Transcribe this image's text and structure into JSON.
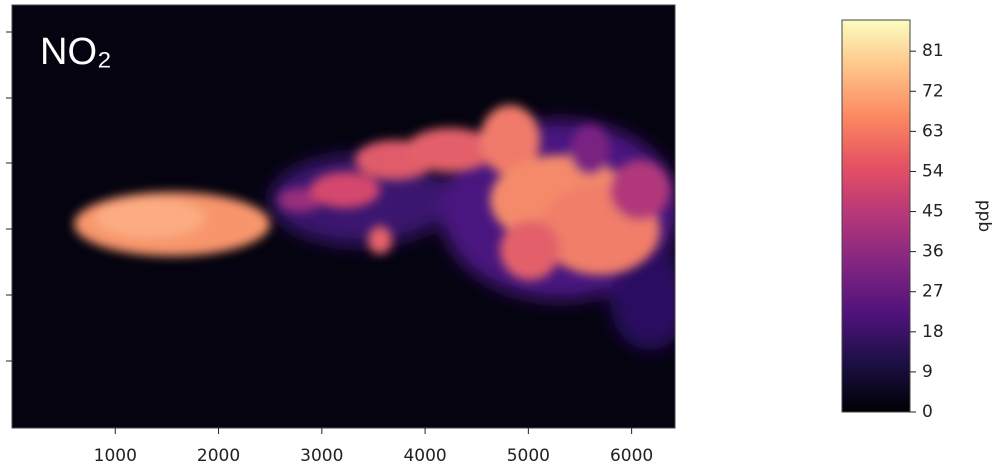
{
  "chart_data": {
    "type": "heatmap",
    "annotation": "NO₂",
    "xlim": [
      0,
      6420
    ],
    "xticks": [
      1000,
      2000,
      3000,
      4000,
      5000,
      6000
    ],
    "colorbar": {
      "label": "ppb",
      "lim": [
        0,
        88
      ],
      "ticks": [
        0,
        9,
        18,
        27,
        36,
        45,
        54,
        63,
        72,
        81
      ],
      "colormap": "magma"
    }
  }
}
